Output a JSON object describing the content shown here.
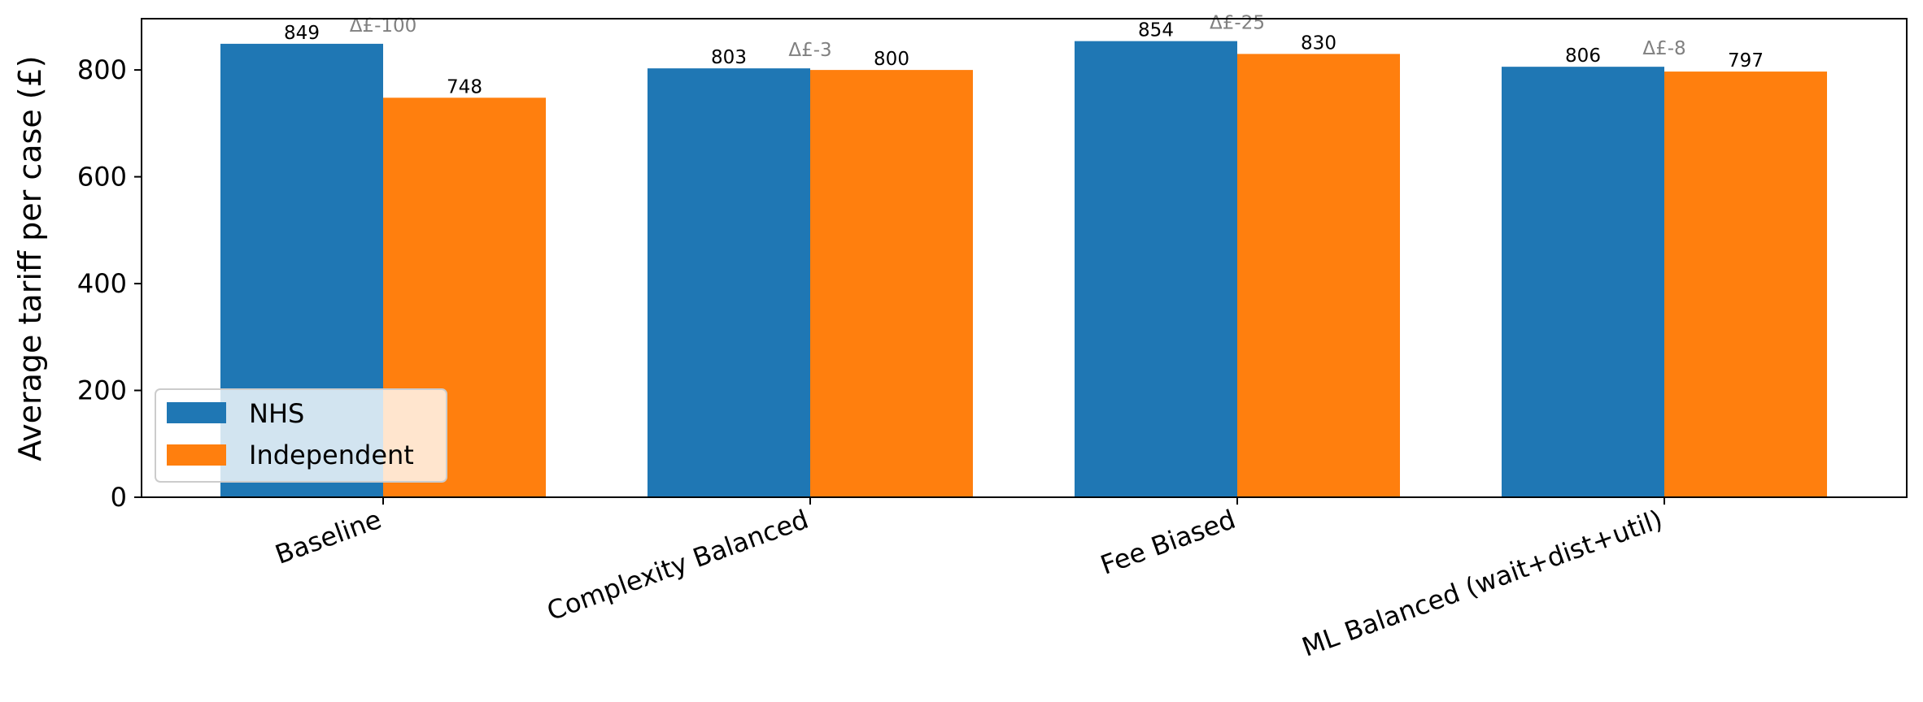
{
  "chart_data": {
    "type": "bar",
    "title": "",
    "xlabel": "",
    "ylabel": "Average tariff per case (£)",
    "categories": [
      "Baseline",
      "Complexity Balanced",
      "Fee Biased",
      "ML Balanced (wait+dist+util)"
    ],
    "series": [
      {
        "name": "NHS",
        "color": "#1f77b4",
        "values": [
          849,
          803,
          854,
          806
        ]
      },
      {
        "name": "Independent",
        "color": "#ff7f0e",
        "values": [
          748,
          800,
          830,
          797
        ]
      }
    ],
    "deltas": [
      "Δ£-100",
      "Δ£-3",
      "Δ£-25",
      "Δ£-8"
    ],
    "ylim": [
      0,
      896
    ],
    "yticks": [
      0,
      200,
      400,
      600,
      800
    ],
    "grid": false,
    "legend_position": "lower-left",
    "x_tick_rotation_deg": 20
  }
}
